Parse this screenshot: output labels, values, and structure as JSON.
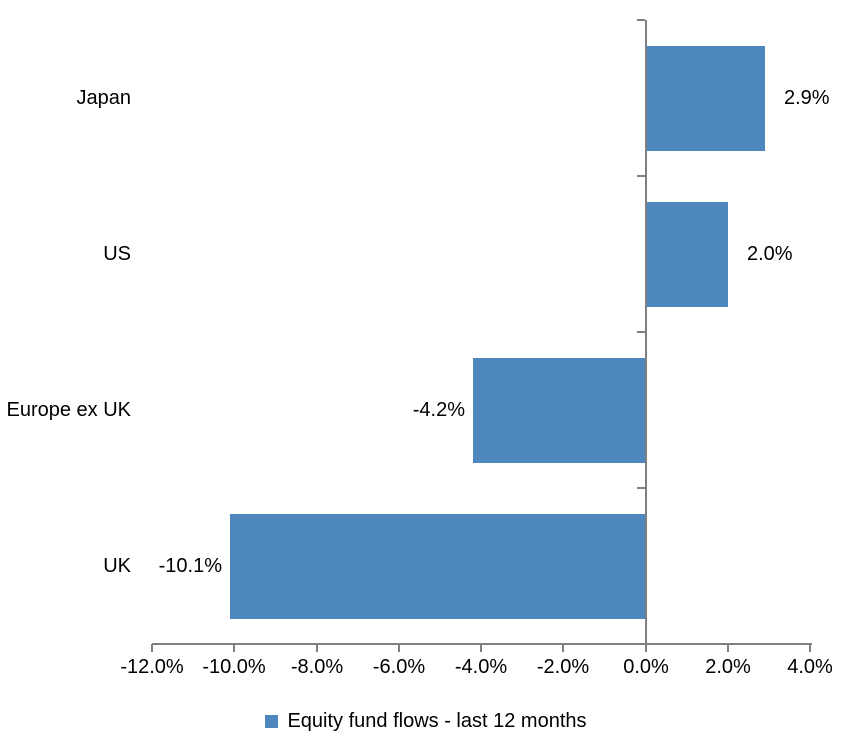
{
  "chart_data": {
    "type": "bar",
    "orientation": "horizontal",
    "title": "",
    "categories": [
      "Japan",
      "US",
      "Europe ex UK",
      "UK"
    ],
    "values": [
      2.9,
      2.0,
      -4.2,
      -10.1
    ],
    "value_labels": [
      "2.9%",
      "2.0%",
      "-4.2%",
      "-10.1%"
    ],
    "series_name": "Equity fund flows - last 12 months",
    "xlim": [
      -12,
      4
    ],
    "x_tick_step": 2,
    "x_tick_labels": [
      "-12.0%",
      "-10.0%",
      "-8.0%",
      "-6.0%",
      "-4.0%",
      "-2.0%",
      "0.0%",
      "2.0%",
      "4.0%"
    ],
    "grid": false,
    "legend_position": "bottom",
    "colors": {
      "bar": "#4E87BE",
      "axis": "#808080",
      "text": "#000000",
      "background": "#FFFFFF"
    }
  }
}
